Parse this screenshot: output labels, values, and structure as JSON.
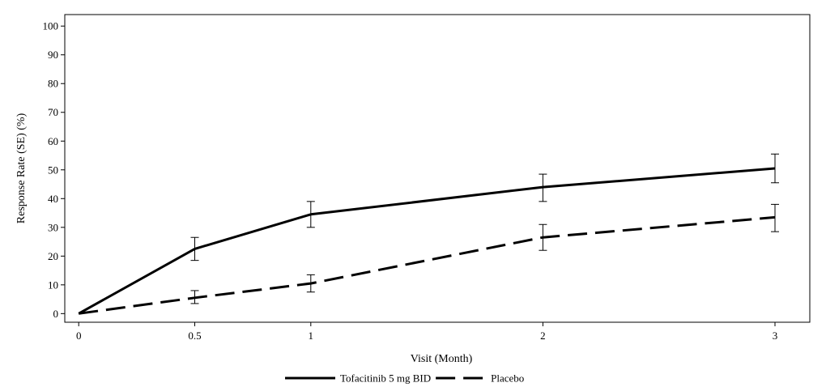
{
  "chart_data": {
    "type": "line",
    "title": "",
    "xlabel": "Visit (Month)",
    "ylabel": "Response Rate (SE) (%)",
    "xlim": [
      -0.06,
      3.15
    ],
    "ylim": [
      -3,
      104
    ],
    "x_ticks": [
      0,
      0.5,
      1,
      2,
      3
    ],
    "x_tick_labels": [
      "0",
      "0.5",
      "1",
      "2",
      "3"
    ],
    "y_ticks": [
      0,
      10,
      20,
      30,
      40,
      50,
      60,
      70,
      80,
      90,
      100
    ],
    "y_tick_labels": [
      "0",
      "10",
      "20",
      "30",
      "40",
      "50",
      "60",
      "70",
      "80",
      "90",
      "100"
    ],
    "grid": false,
    "legend_position": "bottom",
    "series": [
      {
        "name": "Tofacitinib 5 mg BID",
        "style": "solid",
        "color": "#000000",
        "x": [
          0,
          0.5,
          1,
          2,
          3
        ],
        "y": [
          0,
          22.5,
          34.5,
          44,
          50.5
        ],
        "se_lower": [
          0,
          18.5,
          30,
          39,
          45.5
        ],
        "se_upper": [
          0,
          26.5,
          39,
          48.5,
          55.5
        ]
      },
      {
        "name": "Placebo",
        "style": "dashed",
        "color": "#000000",
        "x": [
          0,
          0.5,
          1,
          2,
          3
        ],
        "y": [
          0,
          5.5,
          10.5,
          26.5,
          33.5
        ],
        "se_lower": [
          0,
          3.5,
          7.5,
          22,
          28.5
        ],
        "se_upper": [
          0,
          8,
          13.5,
          31,
          38
        ]
      }
    ]
  }
}
